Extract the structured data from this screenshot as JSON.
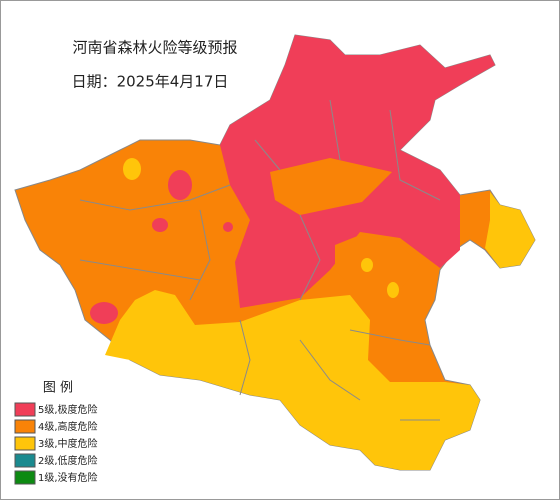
{
  "header": {
    "title": "河南省森林火险等级预报",
    "date": "日期：2025年4月17日"
  },
  "legend": {
    "title": "图  例",
    "items": [
      {
        "label": "5级,极度危险",
        "color": "#f03e58"
      },
      {
        "label": "4级,高度危险",
        "color": "#f98307"
      },
      {
        "label": "3级,中度危险",
        "color": "#ffc50a"
      },
      {
        "label": "2级,低度危险",
        "color": "#1a8a8f"
      },
      {
        "label": "1级,没有危险",
        "color": "#0d8a12"
      }
    ]
  }
}
